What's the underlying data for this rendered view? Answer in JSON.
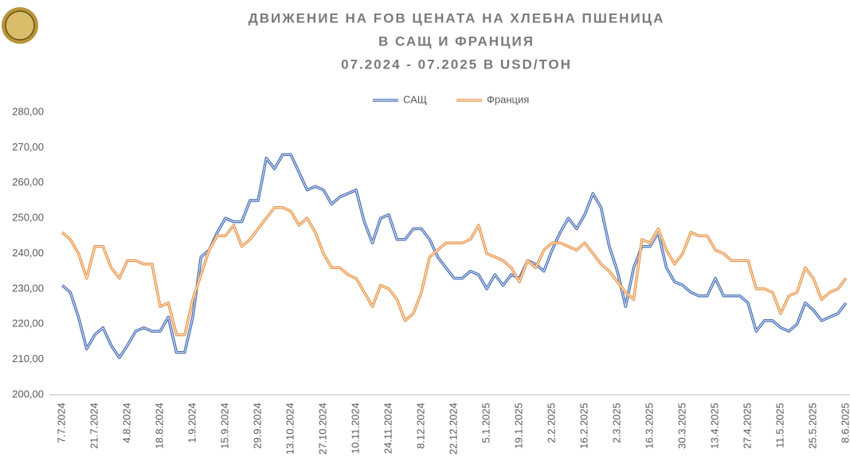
{
  "chart_data": {
    "type": "line",
    "title": [
      "ДВИЖЕНИЕ НА FOB ЦЕНАТА НА ХЛЕБНА ПШЕНИЦА",
      "В САЩ И ФРАНЦИЯ",
      "07.2024 - 07.2025 В USD/ТОН"
    ],
    "categories": [
      "7.7.2024",
      null,
      null,
      null,
      "21.7.2024",
      null,
      null,
      null,
      "4.8.2024",
      null,
      null,
      null,
      "18.8.2024",
      null,
      null,
      null,
      "1.9.2024",
      null,
      null,
      null,
      "15.9.2024",
      null,
      null,
      null,
      "29.9.2024",
      null,
      null,
      null,
      "13.10.2024",
      null,
      null,
      null,
      "27.10.2024",
      null,
      null,
      null,
      "10.11.2024",
      null,
      null,
      null,
      "24.11.2024",
      null,
      null,
      null,
      "8.12.2024",
      null,
      null,
      null,
      "22.12.2024",
      null,
      null,
      null,
      "5.1.2025",
      null,
      null,
      null,
      "19.1.2025",
      null,
      null,
      null,
      "2.2.2025",
      null,
      null,
      null,
      "16.2.2025",
      null,
      null,
      null,
      "2.3.2025",
      null,
      null,
      null,
      "16.3.2025",
      null,
      null,
      null,
      "30.3.2025",
      null,
      null,
      null,
      "13.4.2025",
      null,
      null,
      null,
      "27.4.2025",
      null,
      null,
      null,
      "11.5.2025",
      null,
      null,
      null,
      "25.5.2025",
      null,
      null,
      null,
      "8.6.2025"
    ],
    "series": [
      {
        "name": "САЩ",
        "color": "#4a72b8",
        "values": [
          231,
          229,
          222,
          213,
          217,
          219,
          214,
          210.5,
          214,
          218,
          219,
          218,
          218,
          222,
          212,
          212,
          222,
          239,
          241,
          246,
          250,
          249,
          249,
          255,
          255,
          267,
          264,
          268,
          268,
          263,
          258,
          259,
          258,
          254,
          256,
          257,
          258,
          249,
          243,
          250,
          251,
          244,
          244,
          247,
          247,
          244,
          239,
          236,
          233,
          233,
          235,
          234,
          230,
          234,
          231,
          234,
          233,
          238,
          237,
          235,
          241,
          246,
          250,
          247,
          251,
          257,
          253,
          242,
          235,
          225,
          236,
          242,
          242,
          246,
          236,
          232,
          231,
          229,
          228,
          228,
          233,
          228,
          228,
          228,
          226,
          218,
          221,
          221,
          219,
          218,
          220,
          226,
          224,
          221,
          222,
          223,
          226
        ]
      },
      {
        "name": "Франция",
        "color": "#e8964a",
        "values": [
          246,
          244,
          240,
          233,
          242,
          242,
          236,
          233,
          238,
          238,
          237,
          237,
          225,
          226,
          217,
          217,
          227,
          234,
          241,
          245,
          245,
          248,
          242,
          244,
          247,
          250,
          253,
          253,
          252,
          248,
          250,
          246,
          240,
          236,
          236,
          234,
          233,
          229,
          225,
          231,
          230,
          227,
          221,
          223,
          229,
          239,
          241,
          243,
          243,
          243,
          244,
          248,
          240,
          239,
          238,
          236,
          232,
          238,
          236,
          241,
          243,
          243,
          242,
          241,
          243,
          240,
          237,
          235,
          232,
          229,
          227,
          244,
          243,
          247,
          241,
          237,
          240,
          246,
          245,
          245,
          241,
          240,
          238,
          238,
          238,
          230,
          230,
          229,
          223,
          228,
          229,
          236,
          233,
          227,
          229,
          230,
          233
        ]
      }
    ],
    "ylim": [
      200,
      280
    ],
    "yticks": [
      {
        "value": 200,
        "label": "200,00"
      },
      {
        "value": 210,
        "label": "210,00"
      },
      {
        "value": 220,
        "label": "220,00"
      },
      {
        "value": 230,
        "label": "230,00"
      },
      {
        "value": 240,
        "label": "240,00"
      },
      {
        "value": 250,
        "label": "250,00"
      },
      {
        "value": 260,
        "label": "260,00"
      },
      {
        "value": 270,
        "label": "270,00"
      },
      {
        "value": 280,
        "label": "280,00"
      }
    ],
    "grid": false,
    "legend": "top"
  }
}
